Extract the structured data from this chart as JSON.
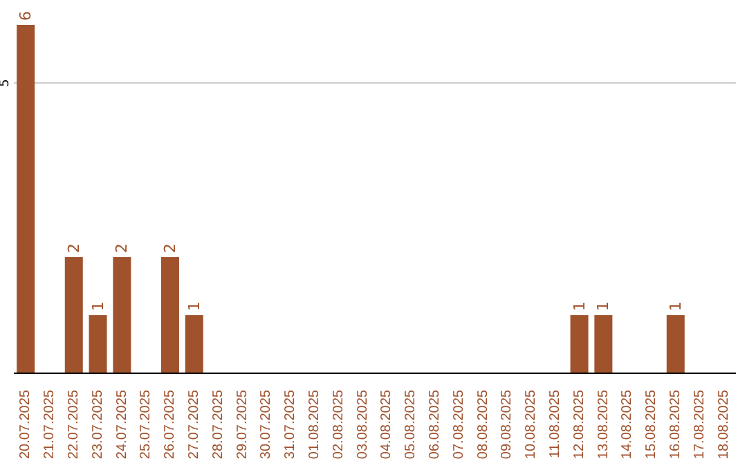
{
  "chart_data": {
    "type": "bar",
    "categories": [
      "20.07.2025",
      "21.07.2025",
      "22.07.2025",
      "23.07.2025",
      "24.07.2025",
      "25.07.2025",
      "26.07.2025",
      "27.07.2025",
      "28.07.2025",
      "29.07.2025",
      "30.07.2025",
      "31.07.2025",
      "01.08.2025",
      "02.08.2025",
      "03.08.2025",
      "04.08.2025",
      "05.08.2025",
      "06.08.2025",
      "07.08.2025",
      "08.08.2025",
      "09.08.2025",
      "10.08.2025",
      "11.08.2025",
      "12.08.2025",
      "13.08.2025",
      "14.08.2025",
      "15.08.2025",
      "16.08.2025",
      "17.08.2025",
      "18.08.2025"
    ],
    "values": [
      6,
      0,
      2,
      1,
      2,
      0,
      2,
      1,
      0,
      0,
      0,
      0,
      0,
      0,
      0,
      0,
      0,
      0,
      0,
      0,
      0,
      0,
      0,
      1,
      1,
      0,
      0,
      1,
      0,
      0
    ],
    "value_labels": [
      "6",
      null,
      "2",
      "1",
      "2",
      null,
      "2",
      "1",
      null,
      null,
      null,
      null,
      null,
      null,
      null,
      null,
      null,
      null,
      null,
      null,
      null,
      null,
      null,
      "1",
      "1",
      null,
      null,
      "1",
      null,
      null
    ],
    "color": "#a0522d",
    "ylim": [
      0,
      6
    ],
    "yticks": [
      5
    ],
    "grid": "y"
  }
}
